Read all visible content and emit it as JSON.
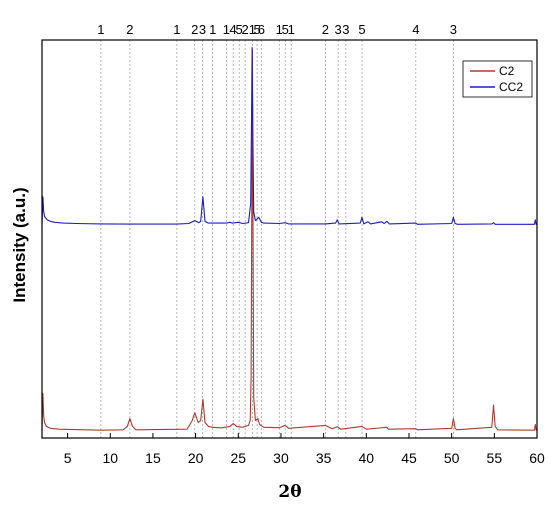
{
  "chart_data": {
    "type": "line",
    "title": "",
    "xlabel": "2θ",
    "ylabel": "Intensity (a.u.)",
    "xlim": [
      2,
      60
    ],
    "x_ticks": [
      5,
      10,
      15,
      20,
      25,
      30,
      35,
      40,
      45,
      50,
      55,
      60
    ],
    "y_ticks_shown": false,
    "grid": "vertical dashed reference lines at peak positions",
    "legend": {
      "position": "top-right",
      "entries": [
        "C2",
        "CC2"
      ]
    },
    "phase_markers": [
      {
        "x": 8.9,
        "label": "1"
      },
      {
        "x": 12.3,
        "label": "2"
      },
      {
        "x": 17.8,
        "label": "1"
      },
      {
        "x": 19.9,
        "label": "2"
      },
      {
        "x": 20.8,
        "label": "3"
      },
      {
        "x": 22.0,
        "label": "1"
      },
      {
        "x": 23.6,
        "label": "1"
      },
      {
        "x": 24.4,
        "label": "4"
      },
      {
        "x": 25.1,
        "label": "5"
      },
      {
        "x": 25.8,
        "label": "2"
      },
      {
        "x": 26.65,
        "label": "1"
      },
      {
        "x": 27.2,
        "label": "5"
      },
      {
        "x": 27.7,
        "label": "6"
      },
      {
        "x": 29.8,
        "label": "1"
      },
      {
        "x": 30.5,
        "label": "5"
      },
      {
        "x": 31.2,
        "label": "1"
      },
      {
        "x": 35.2,
        "label": "2"
      },
      {
        "x": 36.7,
        "label": "3"
      },
      {
        "x": 37.6,
        "label": "3"
      },
      {
        "x": 39.5,
        "label": "5"
      },
      {
        "x": 45.8,
        "label": "4"
      },
      {
        "x": 50.2,
        "label": "3"
      }
    ],
    "series": [
      {
        "name": "C2",
        "color": "#b03a2e",
        "baseline": 3,
        "points": [
          [
            2.0,
            3.0
          ],
          [
            2.1,
            22.0
          ],
          [
            2.2,
            10.0
          ],
          [
            2.3,
            7.0
          ],
          [
            2.5,
            5.0
          ],
          [
            3.0,
            4.0
          ],
          [
            4.0,
            3.5
          ],
          [
            8.9,
            3.0
          ],
          [
            11.5,
            3.2
          ],
          [
            12.0,
            5.0
          ],
          [
            12.3,
            9.0
          ],
          [
            12.6,
            5.0
          ],
          [
            13.0,
            3.2
          ],
          [
            19.0,
            3.5
          ],
          [
            19.6,
            8.0
          ],
          [
            19.9,
            12.0
          ],
          [
            20.3,
            7.0
          ],
          [
            20.6,
            8.0
          ],
          [
            20.85,
            19.0
          ],
          [
            21.1,
            7.0
          ],
          [
            21.5,
            5.0
          ],
          [
            22.0,
            4.5
          ],
          [
            23.0,
            4.2
          ],
          [
            24.0,
            5.0
          ],
          [
            24.4,
            6.5
          ],
          [
            24.8,
            5.0
          ],
          [
            25.5,
            4.5
          ],
          [
            26.2,
            5.5
          ],
          [
            26.4,
            8.0
          ],
          [
            26.5,
            30.0
          ],
          [
            26.58,
            120.0
          ],
          [
            26.65,
            200.0
          ],
          [
            26.72,
            110.0
          ],
          [
            26.8,
            20.0
          ],
          [
            27.0,
            8.0
          ],
          [
            27.3,
            9.0
          ],
          [
            27.5,
            6.0
          ],
          [
            28.0,
            4.5
          ],
          [
            29.8,
            4.3
          ],
          [
            30.5,
            5.5
          ],
          [
            30.9,
            4.0
          ],
          [
            35.2,
            5.5
          ],
          [
            36.0,
            3.8
          ],
          [
            36.6,
            4.8
          ],
          [
            37.0,
            3.5
          ],
          [
            39.5,
            5.0
          ],
          [
            40.0,
            3.5
          ],
          [
            42.4,
            4.5
          ],
          [
            42.6,
            3.5
          ],
          [
            45.8,
            3.8
          ],
          [
            46.0,
            3.2
          ],
          [
            50.0,
            4.0
          ],
          [
            50.2,
            9.0
          ],
          [
            50.4,
            4.0
          ],
          [
            50.6,
            3.2
          ],
          [
            54.7,
            4.5
          ],
          [
            54.9,
            16.0
          ],
          [
            55.1,
            5.0
          ],
          [
            55.4,
            3.2
          ],
          [
            59.7,
            3.0
          ],
          [
            59.8,
            6.0
          ],
          [
            59.9,
            3.0
          ],
          [
            60.0,
            3.0
          ]
        ]
      },
      {
        "name": "CC2",
        "color": "#1f1fbf",
        "baseline": 4,
        "points": [
          [
            2.0,
            4.0
          ],
          [
            2.1,
            38.0
          ],
          [
            2.2,
            20.0
          ],
          [
            2.3,
            14.0
          ],
          [
            2.6,
            10.0
          ],
          [
            3.0,
            8.0
          ],
          [
            3.5,
            7.0
          ],
          [
            4.5,
            6.0
          ],
          [
            6.0,
            5.5
          ],
          [
            8.9,
            5.0
          ],
          [
            12.3,
            4.8
          ],
          [
            17.8,
            4.8
          ],
          [
            19.2,
            5.5
          ],
          [
            19.9,
            9.0
          ],
          [
            20.4,
            6.5
          ],
          [
            20.6,
            8.0
          ],
          [
            20.85,
            38.0
          ],
          [
            21.1,
            8.0
          ],
          [
            21.5,
            6.0
          ],
          [
            22.0,
            6.0
          ],
          [
            23.6,
            6.0
          ],
          [
            24.0,
            7.0
          ],
          [
            24.3,
            6.0
          ],
          [
            25.0,
            7.0
          ],
          [
            25.5,
            5.5
          ],
          [
            26.2,
            6.5
          ],
          [
            26.45,
            30.0
          ],
          [
            26.55,
            130.0
          ],
          [
            26.62,
            220.0
          ],
          [
            26.7,
            120.0
          ],
          [
            26.8,
            20.0
          ],
          [
            27.0,
            9.0
          ],
          [
            27.4,
            13.0
          ],
          [
            27.7,
            7.0
          ],
          [
            28.0,
            6.0
          ],
          [
            29.8,
            5.5
          ],
          [
            30.5,
            6.5
          ],
          [
            30.9,
            5.0
          ],
          [
            35.2,
            5.0
          ],
          [
            36.4,
            6.0
          ],
          [
            36.6,
            10.0
          ],
          [
            36.8,
            5.0
          ],
          [
            39.3,
            6.0
          ],
          [
            39.5,
            13.0
          ],
          [
            39.7,
            5.0
          ],
          [
            40.2,
            7.5
          ],
          [
            40.5,
            5.0
          ],
          [
            41.8,
            7.5
          ],
          [
            42.1,
            5.5
          ],
          [
            42.4,
            8.0
          ],
          [
            42.7,
            5.0
          ],
          [
            45.8,
            6.0
          ],
          [
            46.0,
            4.5
          ],
          [
            50.0,
            5.5
          ],
          [
            50.2,
            13.0
          ],
          [
            50.4,
            5.5
          ],
          [
            50.7,
            4.5
          ],
          [
            54.7,
            5.0
          ],
          [
            54.9,
            6.5
          ],
          [
            55.1,
            4.5
          ],
          [
            59.7,
            4.5
          ],
          [
            59.8,
            10.0
          ],
          [
            59.9,
            4.5
          ],
          [
            60.0,
            4.5
          ]
        ]
      }
    ]
  }
}
